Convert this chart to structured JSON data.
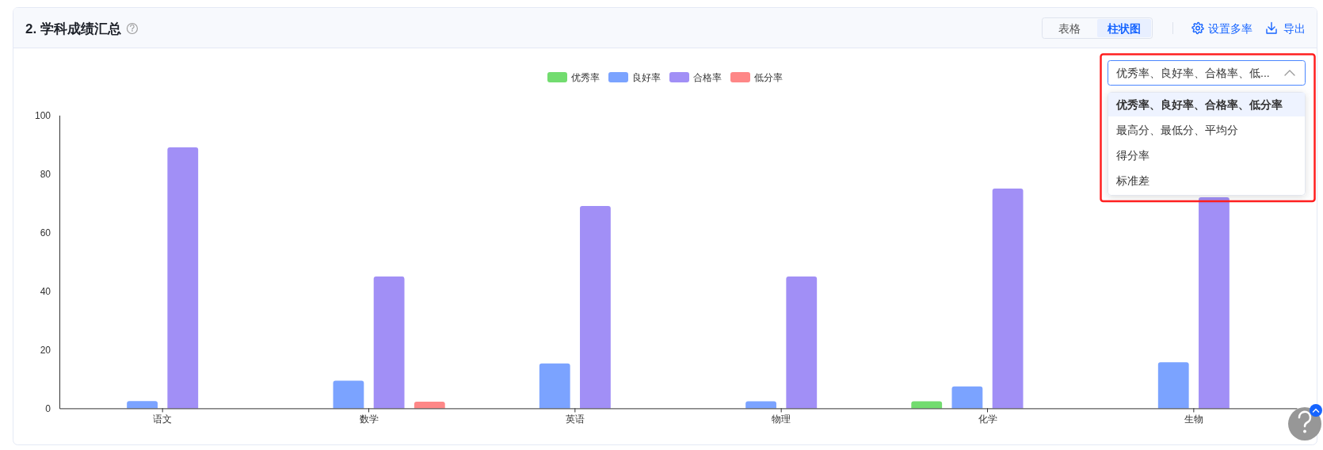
{
  "chart_data": {
    "type": "bar",
    "title": "2. 学科成绩汇总",
    "categories": [
      "语文",
      "数学",
      "英语",
      "物理",
      "化学",
      "生物"
    ],
    "series": [
      {
        "name": "优秀率",
        "color": "#72dc6f",
        "values": [
          0,
          0,
          0,
          0,
          2.4,
          0
        ]
      },
      {
        "name": "良好率",
        "color": "#7ba3ff",
        "values": [
          2.5,
          9.4,
          15.3,
          2.4,
          7.5,
          15.7
        ]
      },
      {
        "name": "合格率",
        "color": "#a18ff6",
        "values": [
          89,
          45,
          69,
          45,
          75,
          72
        ]
      },
      {
        "name": "低分率",
        "color": "#fe8787",
        "values": [
          0,
          2.3,
          0,
          0,
          0,
          0
        ]
      }
    ],
    "ylim": [
      0,
      100
    ],
    "yticks": [
      0,
      20,
      40,
      60,
      80,
      100
    ],
    "legend": "top",
    "annotations": [
      "表格",
      "柱状图",
      "设置多率",
      "导出",
      "优秀率、良好率、合格率、低...",
      "优秀率、良好率、合格率、低分率",
      "最高分、最低分、平均分",
      "得分率",
      "标准差"
    ]
  }
}
